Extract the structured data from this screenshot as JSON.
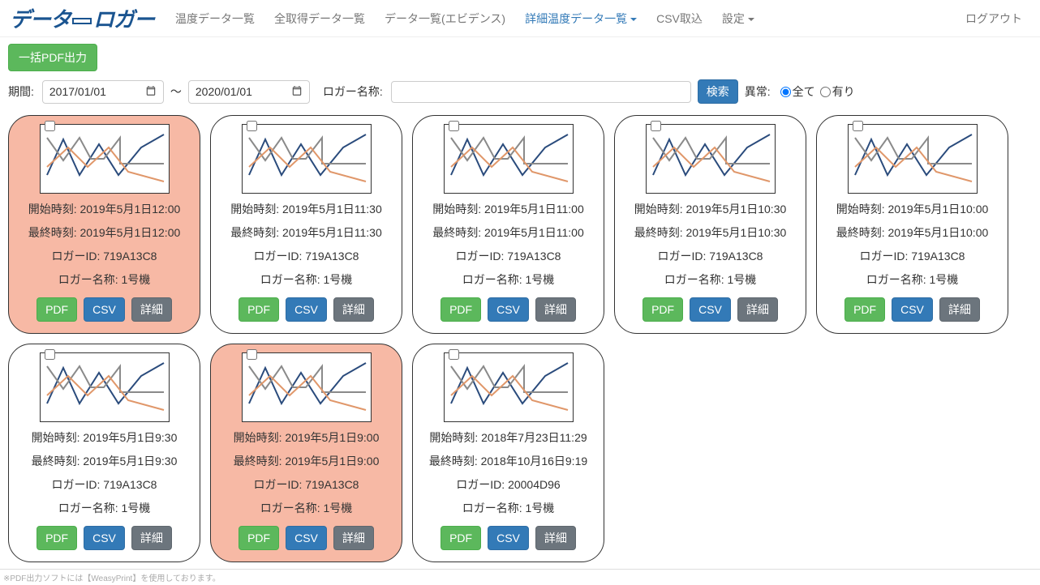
{
  "logo": "データ ロガー",
  "nav": {
    "items": [
      {
        "label": "温度データ一覧",
        "active": false
      },
      {
        "label": "全取得データ一覧",
        "active": false
      },
      {
        "label": "データ一覧(エビデンス)",
        "active": false
      },
      {
        "label": "詳細温度データ一覧",
        "active": true,
        "dropdown": true
      },
      {
        "label": "CSV取込",
        "active": false
      },
      {
        "label": "設定",
        "active": false,
        "dropdown": true
      }
    ],
    "logout": "ログアウト"
  },
  "bulk_pdf_label": "一括PDF出力",
  "filters": {
    "period_label": "期間:",
    "date_from": "2017/01/01",
    "date_sep": "～",
    "date_to": "2020/01/01",
    "logger_name_label": "ロガー名称:",
    "logger_name_value": "",
    "search_label": "検索",
    "anomaly_label": "異常:",
    "radio_all": "全て",
    "radio_yes": "有り"
  },
  "card_labels": {
    "start": "開始時刻:",
    "end": "最終時刻:",
    "logger_id": "ロガーID:",
    "logger_name": "ロガー名称:",
    "pdf": "PDF",
    "csv": "CSV",
    "detail": "詳細"
  },
  "chart_style": {
    "type": "line",
    "width": 160,
    "height": 86,
    "background_color": "#ffffff",
    "border_color": "#333333",
    "series": [
      {
        "name": "blue",
        "color": "#2a4b7c",
        "stroke_width": 2,
        "points": [
          [
            8,
            62
          ],
          [
            28,
            18
          ],
          [
            48,
            62
          ],
          [
            72,
            24
          ],
          [
            96,
            62
          ],
          [
            124,
            28
          ],
          [
            152,
            12
          ]
        ]
      },
      {
        "name": "gray",
        "color": "#8a8a8a",
        "stroke_width": 2,
        "points": [
          [
            8,
            16
          ],
          [
            28,
            44
          ],
          [
            48,
            16
          ],
          [
            62,
            42
          ],
          [
            78,
            42
          ],
          [
            98,
            16
          ],
          [
            98,
            48
          ],
          [
            152,
            48
          ]
        ]
      },
      {
        "name": "orange",
        "color": "#e0976a",
        "stroke_width": 2,
        "points": [
          [
            8,
            52
          ],
          [
            34,
            28
          ],
          [
            58,
            52
          ],
          [
            84,
            28
          ],
          [
            108,
            58
          ],
          [
            152,
            70
          ]
        ]
      }
    ]
  },
  "cards": [
    {
      "anomaly": true,
      "start": "2019年5月1日12:00",
      "end": "2019年5月1日12:00",
      "logger_id": "719A13C8",
      "logger_name": "1号機"
    },
    {
      "anomaly": false,
      "start": "2019年5月1日11:30",
      "end": "2019年5月1日11:30",
      "logger_id": "719A13C8",
      "logger_name": "1号機"
    },
    {
      "anomaly": false,
      "start": "2019年5月1日11:00",
      "end": "2019年5月1日11:00",
      "logger_id": "719A13C8",
      "logger_name": "1号機"
    },
    {
      "anomaly": false,
      "start": "2019年5月1日10:30",
      "end": "2019年5月1日10:30",
      "logger_id": "719A13C8",
      "logger_name": "1号機"
    },
    {
      "anomaly": false,
      "start": "2019年5月1日10:00",
      "end": "2019年5月1日10:00",
      "logger_id": "719A13C8",
      "logger_name": "1号機"
    },
    {
      "anomaly": false,
      "start": "2019年5月1日9:30",
      "end": "2019年5月1日9:30",
      "logger_id": "719A13C8",
      "logger_name": "1号機"
    },
    {
      "anomaly": true,
      "start": "2019年5月1日9:00",
      "end": "2019年5月1日9:00",
      "logger_id": "719A13C8",
      "logger_name": "1号機"
    },
    {
      "anomaly": false,
      "start": "2018年7月23日11:29",
      "end": "2018年10月16日9:19",
      "logger_id": "20004D96",
      "logger_name": "1号機"
    }
  ],
  "footer": "※PDF出力ソフトには【WeasyPrint】を使用しております。"
}
